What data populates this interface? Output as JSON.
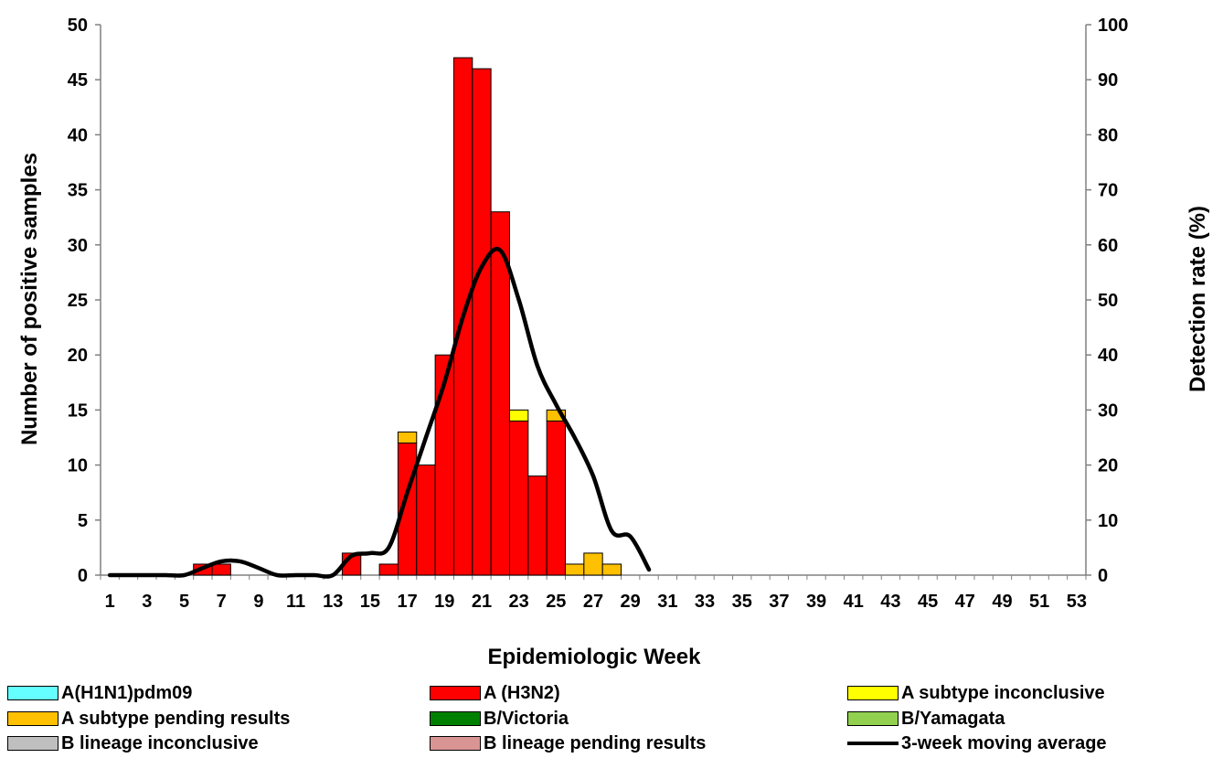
{
  "chart_data": {
    "type": "bar",
    "stacked": true,
    "weeks": [
      1,
      2,
      3,
      4,
      5,
      6,
      7,
      8,
      9,
      10,
      11,
      12,
      13,
      14,
      15,
      16,
      17,
      18,
      19,
      20,
      21,
      22,
      23,
      24,
      25,
      26,
      27,
      28,
      29,
      30,
      31,
      32,
      33,
      34,
      35,
      36,
      37,
      38,
      39,
      40,
      41,
      42,
      43,
      44,
      45,
      46,
      47,
      48,
      49,
      50,
      51,
      52,
      53
    ],
    "xtick_labels": [
      "1",
      "3",
      "5",
      "7",
      "9",
      "11",
      "13",
      "15",
      "17",
      "19",
      "21",
      "23",
      "25",
      "27",
      "29",
      "31",
      "33",
      "35",
      "37",
      "39",
      "41",
      "43",
      "45",
      "47",
      "49",
      "51",
      "53"
    ],
    "xlabel": "Epidemiologic Week",
    "ylabel_left": "Number of positive samples",
    "ylabel_right": "Detection rate (%)",
    "ylim_left": [
      0,
      50
    ],
    "ylim_right": [
      0,
      100
    ],
    "yticks_left": [
      "0",
      "5",
      "10",
      "15",
      "20",
      "25",
      "30",
      "35",
      "40",
      "45",
      "50"
    ],
    "yticks_right": [
      "0",
      "10",
      "20",
      "30",
      "40",
      "50",
      "60",
      "70",
      "80",
      "90",
      "100"
    ],
    "series": [
      {
        "name": "A(H1N1)pdm09",
        "color": "#66FFFF",
        "values": [
          0,
          0,
          0,
          0,
          0,
          0,
          0,
          0,
          0,
          0,
          0,
          0,
          0,
          0,
          0,
          0,
          0,
          0,
          0,
          0,
          0,
          0,
          0,
          0,
          0,
          0,
          0,
          0,
          0,
          0,
          0,
          0,
          0,
          0,
          0,
          0,
          0,
          0,
          0,
          0,
          0,
          0,
          0,
          0,
          0,
          0,
          0,
          0,
          0,
          0,
          0,
          0,
          0
        ]
      },
      {
        "name": "A (H3N2)",
        "color": "#FF0000",
        "values": [
          0,
          0,
          0,
          0,
          0,
          1,
          1,
          0,
          0,
          0,
          0,
          0,
          0,
          2,
          0,
          1,
          12,
          10,
          20,
          47,
          46,
          33,
          14,
          9,
          14,
          0,
          0,
          0,
          0,
          0,
          0,
          0,
          0,
          0,
          0,
          0,
          0,
          0,
          0,
          0,
          0,
          0,
          0,
          0,
          0,
          0,
          0,
          0,
          0,
          0,
          0,
          0,
          0
        ]
      },
      {
        "name": "A subtype inconclusive",
        "color": "#FFFF00",
        "values": [
          0,
          0,
          0,
          0,
          0,
          0,
          0,
          0,
          0,
          0,
          0,
          0,
          0,
          0,
          0,
          0,
          0,
          0,
          0,
          0,
          0,
          0,
          1,
          0,
          0,
          0,
          0,
          0,
          0,
          0,
          0,
          0,
          0,
          0,
          0,
          0,
          0,
          0,
          0,
          0,
          0,
          0,
          0,
          0,
          0,
          0,
          0,
          0,
          0,
          0,
          0,
          0,
          0
        ]
      },
      {
        "name": "A subtype pending results",
        "color": "#FFC000",
        "values": [
          0,
          0,
          0,
          0,
          0,
          0,
          0,
          0,
          0,
          0,
          0,
          0,
          0,
          0,
          0,
          0,
          1,
          0,
          0,
          0,
          0,
          0,
          0,
          0,
          1,
          1,
          2,
          1,
          0,
          0,
          0,
          0,
          0,
          0,
          0,
          0,
          0,
          0,
          0,
          0,
          0,
          0,
          0,
          0,
          0,
          0,
          0,
          0,
          0,
          0,
          0,
          0,
          0
        ]
      },
      {
        "name": "B/Victoria",
        "color": "#008000",
        "values": [
          0,
          0,
          0,
          0,
          0,
          0,
          0,
          0,
          0,
          0,
          0,
          0,
          0,
          0,
          0,
          0,
          0,
          0,
          0,
          0,
          0,
          0,
          0,
          0,
          0,
          0,
          0,
          0,
          0,
          0,
          0,
          0,
          0,
          0,
          0,
          0,
          0,
          0,
          0,
          0,
          0,
          0,
          0,
          0,
          0,
          0,
          0,
          0,
          0,
          0,
          0,
          0,
          0
        ]
      },
      {
        "name": "B/Yamagata",
        "color": "#92D050",
        "values": [
          0,
          0,
          0,
          0,
          0,
          0,
          0,
          0,
          0,
          0,
          0,
          0,
          0,
          0,
          0,
          0,
          0,
          0,
          0,
          0,
          0,
          0,
          0,
          0,
          0,
          0,
          0,
          0,
          0,
          0,
          0,
          0,
          0,
          0,
          0,
          0,
          0,
          0,
          0,
          0,
          0,
          0,
          0,
          0,
          0,
          0,
          0,
          0,
          0,
          0,
          0,
          0,
          0
        ]
      },
      {
        "name": "B lineage inconclusive",
        "color": "#BFBFBF",
        "values": [
          0,
          0,
          0,
          0,
          0,
          0,
          0,
          0,
          0,
          0,
          0,
          0,
          0,
          0,
          0,
          0,
          0,
          0,
          0,
          0,
          0,
          0,
          0,
          0,
          0,
          0,
          0,
          0,
          0,
          0,
          0,
          0,
          0,
          0,
          0,
          0,
          0,
          0,
          0,
          0,
          0,
          0,
          0,
          0,
          0,
          0,
          0,
          0,
          0,
          0,
          0,
          0,
          0
        ]
      },
      {
        "name": "B lineage pending results",
        "color": "#D99594",
        "values": [
          0,
          0,
          0,
          0,
          0,
          0,
          0,
          0,
          0,
          0,
          0,
          0,
          0,
          0,
          0,
          0,
          0,
          0,
          0,
          0,
          0,
          0,
          0,
          0,
          0,
          0,
          0,
          0,
          0,
          0,
          0,
          0,
          0,
          0,
          0,
          0,
          0,
          0,
          0,
          0,
          0,
          0,
          0,
          0,
          0,
          0,
          0,
          0,
          0,
          0,
          0,
          0,
          0
        ]
      }
    ],
    "line": {
      "name": "3-week moving average",
      "color": "#000000",
      "axis": "right",
      "weeks": [
        1,
        2,
        3,
        4,
        5,
        6,
        7,
        8,
        9,
        10,
        11,
        12,
        13,
        14,
        15,
        16,
        17,
        18,
        19,
        20,
        21,
        22,
        23,
        24,
        25,
        26,
        27,
        28,
        29,
        30
      ],
      "values": [
        0,
        0,
        0,
        0,
        0,
        1.3,
        2.5,
        2.5,
        1.3,
        0,
        0,
        0,
        0,
        3.5,
        4,
        5,
        15,
        25,
        35,
        47,
        56,
        59,
        50,
        38,
        31,
        25,
        18,
        8,
        7,
        1
      ]
    },
    "legend": {
      "placement": "bottom",
      "items": [
        "A(H1N1)pdm09",
        "A (H3N2)",
        "A subtype inconclusive",
        "A subtype pending results",
        "B/Victoria",
        "B/Yamagata",
        "B lineage inconclusive",
        "B lineage pending results",
        "3-week moving average"
      ]
    }
  }
}
